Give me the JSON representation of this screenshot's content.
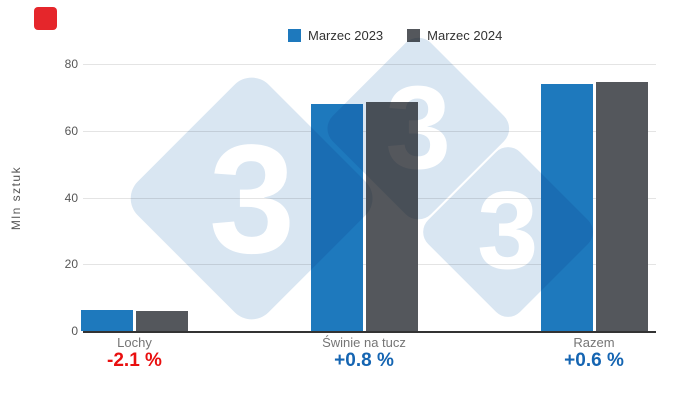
{
  "logo": {
    "color": "#e5262b"
  },
  "legend": {
    "items": [
      {
        "label": "Marzec 2023",
        "color": "#1e79bd"
      },
      {
        "label": "Marzec 2024",
        "color": "#54575c"
      }
    ]
  },
  "watermark": {
    "digit": "3",
    "diamond_color": "#d9e6f2",
    "digit_color": "#ffffff"
  },
  "chart_data": {
    "type": "bar",
    "title": "",
    "xlabel": "",
    "ylabel": "Mln sztuk",
    "categories": [
      "Lochy",
      "Świnie na tucz",
      "Razem"
    ],
    "series": [
      {
        "name": "Marzec 2023",
        "color": "#1e79bd",
        "values": [
          6.15,
          68.0,
          74.1
        ]
      },
      {
        "name": "Marzec 2024",
        "color": "#54575c",
        "values": [
          6.02,
          68.56,
          74.58
        ]
      }
    ],
    "deltas": [
      {
        "text": "-2.1 %",
        "color": "#e90f0f"
      },
      {
        "text": "+0.8 %",
        "color": "#1565b2"
      },
      {
        "text": "+0.6 %",
        "color": "#1565b2"
      }
    ],
    "y_ticks": [
      0,
      20,
      40,
      60,
      80
    ],
    "ylim": [
      0,
      80
    ],
    "grid": true,
    "legend_position": "top",
    "gridline_color": "#e4e4e4",
    "axis_line_color": "#333333",
    "tick_label_color": "#565656",
    "category_label_color": "#757575"
  }
}
